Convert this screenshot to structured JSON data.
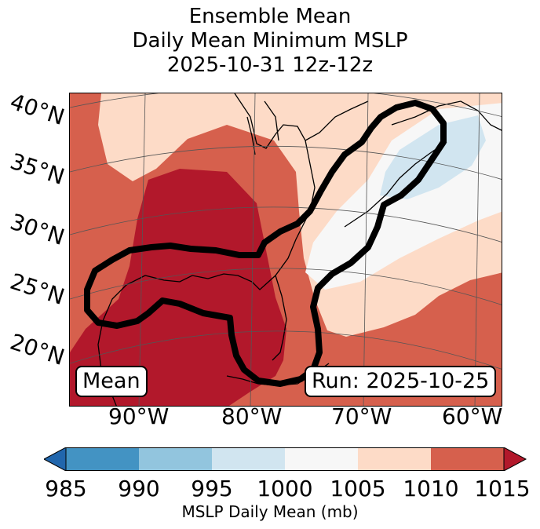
{
  "title": {
    "line1": "Ensemble Mean",
    "line2": "Daily Mean Minimum MSLP",
    "line3": "2025-10-31 12z-12z"
  },
  "map": {
    "lat_labels": [
      "40°N",
      "35°N",
      "30°N",
      "25°N",
      "20°N"
    ],
    "lon_labels": [
      "90°W",
      "80°W",
      "70°W",
      "60°W"
    ],
    "mean_label": "Mean",
    "run_label": "Run: 2025-10-25",
    "colors": {
      "c985_990": "#4393c3",
      "c990_995": "#92c5de",
      "c995_1000": "#d1e5f0",
      "c1000_1005": "#f7f7f7",
      "c1005_1010": "#fddbc7",
      "c1010_1015": "#d6604d",
      "c_over_1015": "#b2182b",
      "c_under_985": "#2166ac"
    }
  },
  "colorbar": {
    "ticks": [
      "985",
      "990",
      "995",
      "1000",
      "1005",
      "1010",
      "1015"
    ],
    "label": "MSLP Daily Mean (mb)"
  }
}
